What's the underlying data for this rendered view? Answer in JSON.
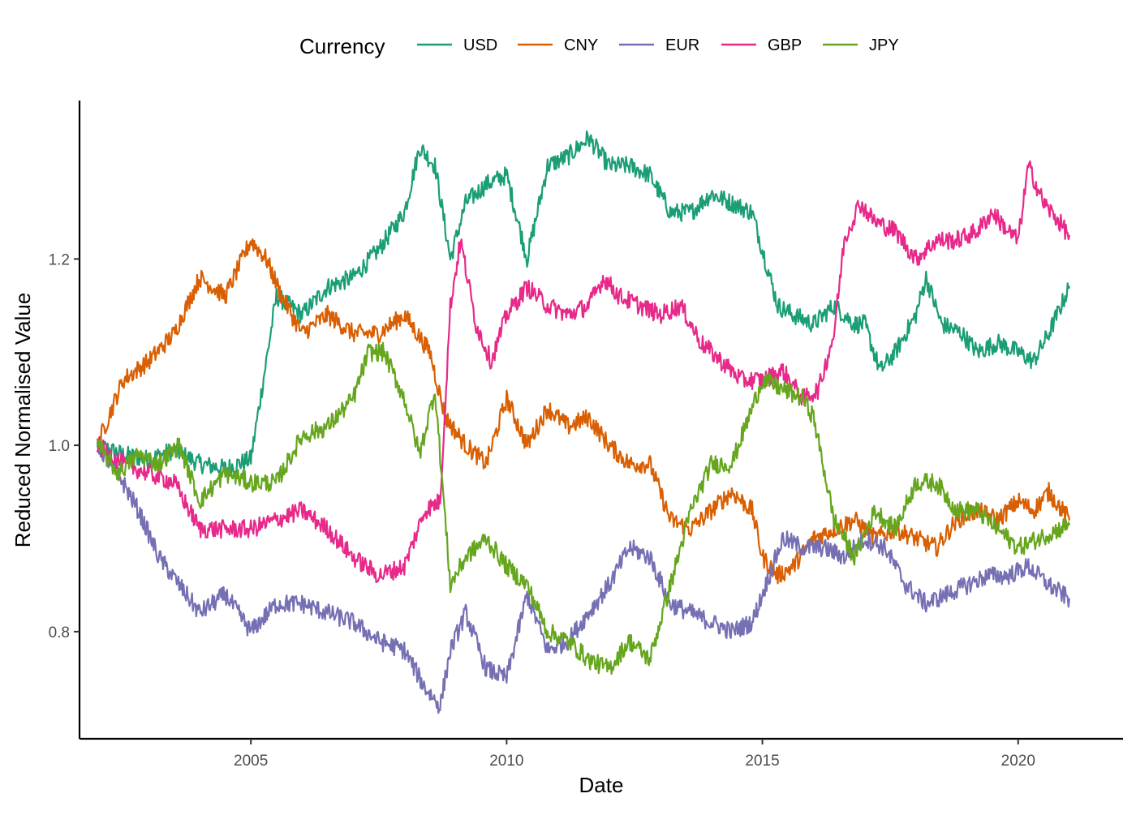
{
  "chart_data": {
    "type": "line",
    "title": "",
    "xlabel": "Date",
    "ylabel": "Reduced Normalised Value",
    "legend_title": "Currency",
    "legend_position": "top",
    "grid": false,
    "xlim": [
      2001.65,
      2022.05
    ],
    "ylim": [
      0.685,
      1.37
    ],
    "x_ticks": [
      2005,
      2010,
      2015,
      2020
    ],
    "x_tick_labels": [
      "2005",
      "2010",
      "2015",
      "2020"
    ],
    "y_ticks": [
      0.8,
      1.0,
      1.2
    ],
    "y_tick_labels": [
      "0.8",
      "1.0",
      "1.2"
    ],
    "series": [
      {
        "name": "USD",
        "color": "#1b9e77",
        "x": [
          2002.0,
          2002.5,
          2003.0,
          2003.5,
          2004.0,
          2004.5,
          2005.0,
          2005.5,
          2006.0,
          2006.5,
          2007.0,
          2007.5,
          2008.0,
          2008.3,
          2008.6,
          2008.9,
          2009.2,
          2009.6,
          2010.0,
          2010.4,
          2010.8,
          2011.2,
          2011.6,
          2012.0,
          2012.4,
          2012.8,
          2013.2,
          2013.6,
          2014.0,
          2014.4,
          2014.8,
          2015.0,
          2015.3,
          2015.6,
          2016.0,
          2016.4,
          2016.8,
          2017.0,
          2017.3,
          2017.6,
          2018.0,
          2018.2,
          2018.5,
          2018.9,
          2019.2,
          2019.6,
          2020.0,
          2020.3,
          2020.6,
          2021.0
        ],
        "y": [
          1.0,
          0.99,
          0.985,
          0.995,
          0.98,
          0.975,
          0.985,
          1.16,
          1.14,
          1.17,
          1.18,
          1.21,
          1.25,
          1.32,
          1.3,
          1.2,
          1.26,
          1.28,
          1.29,
          1.2,
          1.3,
          1.31,
          1.33,
          1.3,
          1.3,
          1.29,
          1.25,
          1.25,
          1.27,
          1.26,
          1.25,
          1.21,
          1.15,
          1.14,
          1.13,
          1.15,
          1.13,
          1.13,
          1.08,
          1.1,
          1.14,
          1.18,
          1.13,
          1.12,
          1.1,
          1.11,
          1.1,
          1.09,
          1.12,
          1.17
        ]
      },
      {
        "name": "CNY",
        "color": "#d95f02",
        "x": [
          2002.0,
          2002.5,
          2003.0,
          2003.5,
          2004.0,
          2004.5,
          2005.0,
          2005.3,
          2005.6,
          2006.0,
          2006.5,
          2007.0,
          2007.5,
          2008.0,
          2008.5,
          2008.8,
          2009.2,
          2009.6,
          2010.0,
          2010.4,
          2010.8,
          2011.2,
          2011.6,
          2012.0,
          2012.4,
          2012.8,
          2013.2,
          2013.6,
          2014.0,
          2014.4,
          2014.8,
          2015.0,
          2015.3,
          2015.6,
          2016.0,
          2016.4,
          2016.8,
          2017.2,
          2017.6,
          2018.0,
          2018.4,
          2018.8,
          2019.2,
          2019.6,
          2020.0,
          2020.3,
          2020.6,
          2021.0
        ],
        "y": [
          1.0,
          1.07,
          1.09,
          1.12,
          1.18,
          1.16,
          1.22,
          1.2,
          1.16,
          1.12,
          1.14,
          1.12,
          1.12,
          1.14,
          1.1,
          1.03,
          1.0,
          0.98,
          1.05,
          1.0,
          1.04,
          1.02,
          1.03,
          1.0,
          0.98,
          0.98,
          0.92,
          0.91,
          0.93,
          0.95,
          0.93,
          0.88,
          0.86,
          0.87,
          0.9,
          0.91,
          0.92,
          0.9,
          0.91,
          0.9,
          0.89,
          0.92,
          0.93,
          0.92,
          0.94,
          0.93,
          0.95,
          0.92
        ]
      },
      {
        "name": "EUR",
        "color": "#7570b3",
        "x": [
          2002.0,
          2002.4,
          2002.8,
          2003.2,
          2003.6,
          2004.0,
          2004.5,
          2005.0,
          2005.5,
          2006.0,
          2006.5,
          2007.0,
          2007.5,
          2008.0,
          2008.4,
          2008.7,
          2008.9,
          2009.2,
          2009.6,
          2010.0,
          2010.4,
          2010.8,
          2011.2,
          2011.6,
          2012.0,
          2012.4,
          2012.8,
          2013.2,
          2013.6,
          2014.0,
          2014.4,
          2014.8,
          2015.0,
          2015.4,
          2015.8,
          2016.2,
          2016.6,
          2017.0,
          2017.4,
          2017.8,
          2018.2,
          2018.6,
          2019.0,
          2019.4,
          2019.8,
          2020.2,
          2020.6,
          2021.0
        ],
        "y": [
          1.0,
          0.97,
          0.93,
          0.88,
          0.85,
          0.82,
          0.84,
          0.8,
          0.83,
          0.83,
          0.82,
          0.81,
          0.79,
          0.78,
          0.74,
          0.72,
          0.78,
          0.82,
          0.76,
          0.75,
          0.84,
          0.78,
          0.79,
          0.82,
          0.85,
          0.89,
          0.88,
          0.83,
          0.82,
          0.81,
          0.8,
          0.81,
          0.84,
          0.9,
          0.89,
          0.89,
          0.88,
          0.9,
          0.89,
          0.85,
          0.83,
          0.84,
          0.85,
          0.86,
          0.86,
          0.87,
          0.85,
          0.835
        ]
      },
      {
        "name": "GBP",
        "color": "#e7298a",
        "x": [
          2002.0,
          2002.5,
          2003.0,
          2003.5,
          2004.0,
          2004.5,
          2005.0,
          2005.5,
          2006.0,
          2006.5,
          2007.0,
          2007.5,
          2008.0,
          2008.4,
          2008.7,
          2008.9,
          2009.1,
          2009.4,
          2009.7,
          2010.0,
          2010.4,
          2010.8,
          2011.2,
          2011.6,
          2011.9,
          2012.2,
          2012.6,
          2013.0,
          2013.4,
          2013.8,
          2014.2,
          2014.6,
          2015.0,
          2015.4,
          2015.8,
          2016.1,
          2016.4,
          2016.6,
          2016.9,
          2017.2,
          2017.6,
          2018.0,
          2018.4,
          2018.8,
          2019.2,
          2019.5,
          2019.8,
          2020.0,
          2020.2,
          2020.5,
          2020.8,
          2021.0
        ],
        "y": [
          1.0,
          0.98,
          0.97,
          0.96,
          0.91,
          0.91,
          0.91,
          0.92,
          0.93,
          0.91,
          0.88,
          0.86,
          0.87,
          0.93,
          0.94,
          1.15,
          1.22,
          1.13,
          1.09,
          1.14,
          1.17,
          1.15,
          1.14,
          1.15,
          1.18,
          1.16,
          1.15,
          1.14,
          1.15,
          1.11,
          1.09,
          1.07,
          1.07,
          1.08,
          1.05,
          1.06,
          1.12,
          1.22,
          1.26,
          1.24,
          1.23,
          1.2,
          1.22,
          1.22,
          1.23,
          1.25,
          1.23,
          1.22,
          1.3,
          1.26,
          1.24,
          1.225
        ]
      },
      {
        "name": "JPY",
        "color": "#66a61e",
        "x": [
          2002.0,
          2002.4,
          2002.8,
          2003.2,
          2003.6,
          2004.0,
          2004.5,
          2005.0,
          2005.5,
          2006.0,
          2006.5,
          2007.0,
          2007.3,
          2007.6,
          2008.0,
          2008.3,
          2008.6,
          2008.9,
          2009.2,
          2009.6,
          2010.0,
          2010.4,
          2010.8,
          2011.2,
          2011.6,
          2012.0,
          2012.4,
          2012.8,
          2013.2,
          2013.6,
          2014.0,
          2014.4,
          2014.8,
          2015.0,
          2015.4,
          2015.8,
          2016.0,
          2016.4,
          2016.8,
          2017.2,
          2017.6,
          2018.0,
          2018.4,
          2018.8,
          2019.2,
          2019.6,
          2020.0,
          2020.4,
          2020.8,
          2021.0
        ],
        "y": [
          1.0,
          0.97,
          0.99,
          0.98,
          1.0,
          0.94,
          0.97,
          0.96,
          0.96,
          1.01,
          1.02,
          1.05,
          1.1,
          1.1,
          1.05,
          0.99,
          1.06,
          0.85,
          0.88,
          0.9,
          0.87,
          0.85,
          0.8,
          0.79,
          0.77,
          0.76,
          0.79,
          0.77,
          0.85,
          0.93,
          0.98,
          0.98,
          1.04,
          1.07,
          1.06,
          1.05,
          1.03,
          0.92,
          0.88,
          0.93,
          0.91,
          0.96,
          0.96,
          0.93,
          0.93,
          0.91,
          0.89,
          0.9,
          0.91,
          0.915
        ]
      }
    ]
  }
}
